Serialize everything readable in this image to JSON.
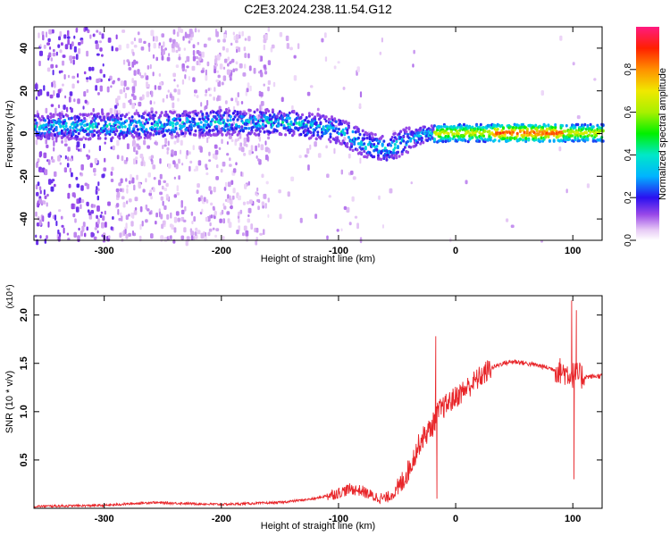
{
  "title": "C2E3.2024.238.11.54.G12",
  "chart_data": [
    {
      "type": "heatmap",
      "xlabel": "Height of straight line (km)",
      "ylabel": "Frequency (Hz)",
      "xlim": [
        -360,
        125
      ],
      "ylim": [
        -50,
        50
      ],
      "x_ticks": [
        -300,
        -200,
        -100,
        0,
        100
      ],
      "y_ticks": [
        -40,
        -20,
        0,
        20,
        40
      ],
      "colorbar": {
        "label": "Normalized spectral amplitude",
        "range": [
          0,
          1
        ],
        "ticks": [
          0.0,
          0.2,
          0.4,
          0.6,
          0.8
        ]
      },
      "ridge": {
        "x": [
          -360,
          -300,
          -250,
          -200,
          -150,
          -120,
          -100,
          -80,
          -60,
          -45,
          -30,
          -10,
          0,
          50,
          80,
          100,
          125
        ],
        "freq": [
          4,
          4,
          5,
          6,
          6,
          4,
          2,
          -4,
          -7,
          -3,
          0,
          1,
          1,
          1,
          1,
          1,
          1
        ]
      }
    },
    {
      "type": "line",
      "xlabel": "Height of straight line (km)",
      "ylabel": "SNR (10 * v/v)",
      "y_multiplier": "(x10⁴)",
      "xlim": [
        -360,
        125
      ],
      "ylim": [
        0,
        2.2
      ],
      "x_ticks": [
        -300,
        -200,
        -100,
        0,
        100
      ],
      "y_ticks": [
        0.5,
        1.0,
        1.5,
        2.0
      ],
      "color": "#e8262a",
      "series": [
        {
          "x": [
            -360,
            -300,
            -260,
            -200,
            -150,
            -120,
            -100,
            -90,
            -80,
            -70,
            -60,
            -50,
            -40,
            -30,
            -20,
            -15,
            -10,
            0,
            10,
            20,
            30,
            40,
            50,
            60,
            70,
            80,
            90,
            95,
            100,
            105,
            110,
            125
          ],
          "y": [
            0.02,
            0.03,
            0.06,
            0.04,
            0.06,
            0.1,
            0.16,
            0.2,
            0.18,
            0.12,
            0.1,
            0.18,
            0.4,
            0.7,
            0.85,
            1.0,
            1.05,
            1.15,
            1.25,
            1.35,
            1.45,
            1.5,
            1.52,
            1.5,
            1.48,
            1.45,
            1.42,
            1.4,
            1.38,
            1.37,
            1.36,
            1.37
          ]
        }
      ],
      "spikes": [
        {
          "x": -17,
          "y": 1.78
        },
        {
          "x": -16,
          "y": 0.1
        },
        {
          "x": 99,
          "y": 2.15
        },
        {
          "x": 101,
          "y": 0.3
        },
        {
          "x": 103,
          "y": 2.05
        }
      ]
    }
  ]
}
